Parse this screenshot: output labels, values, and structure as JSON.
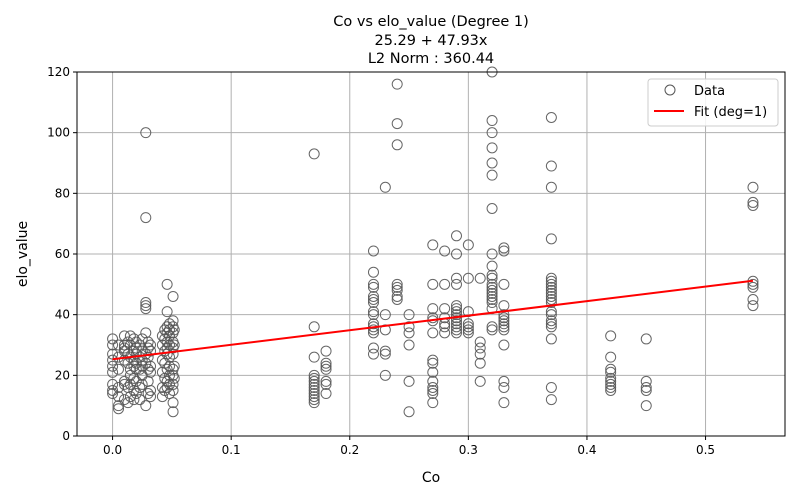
{
  "chart_data": {
    "type": "scatter",
    "title_lines": [
      "Co vs elo_value (Degree 1)",
      "25.29 + 47.93x",
      "L2 Norm : 360.44"
    ],
    "xlabel": "Co",
    "ylabel": "elo_value",
    "xlim": [
      -0.03,
      0.567
    ],
    "ylim": [
      0,
      120
    ],
    "xticks": [
      0.0,
      0.1,
      0.2,
      0.3,
      0.4,
      0.5
    ],
    "xtick_labels": [
      "0.0",
      "0.1",
      "0.2",
      "0.3",
      "0.4",
      "0.5"
    ],
    "yticks": [
      0,
      20,
      40,
      60,
      80,
      100,
      120
    ],
    "ytick_labels": [
      "0",
      "20",
      "40",
      "60",
      "80",
      "100",
      "120"
    ],
    "grid": true,
    "legend_position": "top-right",
    "legend": [
      "Data",
      "Fit (deg=1)"
    ],
    "fit": {
      "intercept": 25.29,
      "slope": 47.93,
      "x_range": [
        0.0,
        0.54
      ],
      "color": "#ff0000"
    },
    "marker_edge_color": "#555555",
    "series": [
      {
        "name": "Data",
        "points": [
          [
            0.0,
            32
          ],
          [
            0.0,
            30
          ],
          [
            0.0,
            27
          ],
          [
            0.0,
            25
          ],
          [
            0.0,
            23
          ],
          [
            0.0,
            21
          ],
          [
            0.0,
            17
          ],
          [
            0.0,
            15
          ],
          [
            0.0,
            14
          ],
          [
            0.005,
            30
          ],
          [
            0.005,
            26
          ],
          [
            0.005,
            22
          ],
          [
            0.005,
            16
          ],
          [
            0.005,
            13
          ],
          [
            0.005,
            10
          ],
          [
            0.005,
            9
          ],
          [
            0.01,
            33
          ],
          [
            0.01,
            30
          ],
          [
            0.01,
            29
          ],
          [
            0.01,
            28
          ],
          [
            0.01,
            25
          ],
          [
            0.01,
            18
          ],
          [
            0.01,
            17
          ],
          [
            0.01,
            12
          ],
          [
            0.013,
            31
          ],
          [
            0.013,
            27
          ],
          [
            0.013,
            24
          ],
          [
            0.013,
            16
          ],
          [
            0.013,
            11
          ],
          [
            0.015,
            33
          ],
          [
            0.015,
            30
          ],
          [
            0.015,
            26
          ],
          [
            0.015,
            22
          ],
          [
            0.015,
            20
          ],
          [
            0.015,
            17
          ],
          [
            0.015,
            13
          ],
          [
            0.018,
            32
          ],
          [
            0.018,
            28
          ],
          [
            0.018,
            25
          ],
          [
            0.018,
            23
          ],
          [
            0.018,
            19
          ],
          [
            0.018,
            15
          ],
          [
            0.018,
            12
          ],
          [
            0.02,
            31
          ],
          [
            0.02,
            29
          ],
          [
            0.02,
            27
          ],
          [
            0.02,
            24
          ],
          [
            0.02,
            22
          ],
          [
            0.02,
            18
          ],
          [
            0.02,
            14
          ],
          [
            0.023,
            30
          ],
          [
            0.023,
            26
          ],
          [
            0.023,
            22
          ],
          [
            0.023,
            16
          ],
          [
            0.023,
            12
          ],
          [
            0.025,
            32
          ],
          [
            0.025,
            28
          ],
          [
            0.025,
            25
          ],
          [
            0.025,
            23
          ],
          [
            0.025,
            20
          ],
          [
            0.025,
            17
          ],
          [
            0.028,
            100
          ],
          [
            0.028,
            72
          ],
          [
            0.028,
            44
          ],
          [
            0.028,
            43
          ],
          [
            0.028,
            42
          ],
          [
            0.028,
            34
          ],
          [
            0.028,
            27
          ],
          [
            0.028,
            24
          ],
          [
            0.028,
            10
          ],
          [
            0.03,
            31
          ],
          [
            0.03,
            29
          ],
          [
            0.03,
            26
          ],
          [
            0.03,
            22
          ],
          [
            0.03,
            18
          ],
          [
            0.03,
            14
          ],
          [
            0.032,
            30
          ],
          [
            0.032,
            28
          ],
          [
            0.032,
            23
          ],
          [
            0.032,
            21
          ],
          [
            0.032,
            15
          ],
          [
            0.032,
            13
          ],
          [
            0.042,
            33
          ],
          [
            0.042,
            30
          ],
          [
            0.042,
            25
          ],
          [
            0.042,
            21
          ],
          [
            0.042,
            16
          ],
          [
            0.042,
            13
          ],
          [
            0.044,
            35
          ],
          [
            0.044,
            32
          ],
          [
            0.044,
            28
          ],
          [
            0.044,
            24
          ],
          [
            0.044,
            19
          ],
          [
            0.044,
            15
          ],
          [
            0.046,
            50
          ],
          [
            0.046,
            41
          ],
          [
            0.046,
            36
          ],
          [
            0.046,
            34
          ],
          [
            0.046,
            31
          ],
          [
            0.046,
            29
          ],
          [
            0.046,
            27
          ],
          [
            0.046,
            22
          ],
          [
            0.046,
            18
          ],
          [
            0.046,
            16
          ],
          [
            0.048,
            37
          ],
          [
            0.048,
            35
          ],
          [
            0.048,
            33
          ],
          [
            0.048,
            30
          ],
          [
            0.048,
            26
          ],
          [
            0.048,
            23
          ],
          [
            0.048,
            20
          ],
          [
            0.048,
            17
          ],
          [
            0.048,
            14
          ],
          [
            0.051,
            46
          ],
          [
            0.051,
            38
          ],
          [
            0.051,
            36
          ],
          [
            0.051,
            34
          ],
          [
            0.051,
            31
          ],
          [
            0.051,
            29
          ],
          [
            0.051,
            27
          ],
          [
            0.051,
            22
          ],
          [
            0.051,
            20
          ],
          [
            0.051,
            17
          ],
          [
            0.051,
            15
          ],
          [
            0.051,
            11
          ],
          [
            0.051,
            8
          ],
          [
            0.052,
            35
          ],
          [
            0.052,
            30
          ],
          [
            0.052,
            23
          ],
          [
            0.052,
            19
          ],
          [
            0.17,
            93
          ],
          [
            0.17,
            36
          ],
          [
            0.17,
            26
          ],
          [
            0.17,
            20
          ],
          [
            0.17,
            19
          ],
          [
            0.17,
            18
          ],
          [
            0.17,
            17
          ],
          [
            0.17,
            16
          ],
          [
            0.17,
            15
          ],
          [
            0.17,
            14
          ],
          [
            0.17,
            13
          ],
          [
            0.17,
            12
          ],
          [
            0.17,
            11
          ],
          [
            0.18,
            28
          ],
          [
            0.18,
            24
          ],
          [
            0.18,
            23
          ],
          [
            0.18,
            22
          ],
          [
            0.18,
            18
          ],
          [
            0.18,
            17
          ],
          [
            0.18,
            14
          ],
          [
            0.22,
            61
          ],
          [
            0.22,
            54
          ],
          [
            0.22,
            50
          ],
          [
            0.22,
            49
          ],
          [
            0.22,
            46
          ],
          [
            0.22,
            45
          ],
          [
            0.22,
            44
          ],
          [
            0.22,
            41
          ],
          [
            0.22,
            40
          ],
          [
            0.22,
            37
          ],
          [
            0.22,
            36
          ],
          [
            0.22,
            35
          ],
          [
            0.22,
            34
          ],
          [
            0.22,
            29
          ],
          [
            0.22,
            27
          ],
          [
            0.23,
            82
          ],
          [
            0.23,
            40
          ],
          [
            0.23,
            35
          ],
          [
            0.23,
            28
          ],
          [
            0.23,
            27
          ],
          [
            0.23,
            20
          ],
          [
            0.24,
            116
          ],
          [
            0.24,
            103
          ],
          [
            0.24,
            96
          ],
          [
            0.24,
            50
          ],
          [
            0.24,
            49
          ],
          [
            0.24,
            48
          ],
          [
            0.24,
            46
          ],
          [
            0.24,
            45
          ],
          [
            0.25,
            40
          ],
          [
            0.25,
            36
          ],
          [
            0.25,
            34
          ],
          [
            0.25,
            30
          ],
          [
            0.25,
            18
          ],
          [
            0.25,
            8
          ],
          [
            0.27,
            63
          ],
          [
            0.27,
            50
          ],
          [
            0.27,
            42
          ],
          [
            0.27,
            39
          ],
          [
            0.27,
            38
          ],
          [
            0.27,
            34
          ],
          [
            0.27,
            25
          ],
          [
            0.27,
            24
          ],
          [
            0.27,
            21
          ],
          [
            0.27,
            18
          ],
          [
            0.27,
            16
          ],
          [
            0.27,
            15
          ],
          [
            0.27,
            14
          ],
          [
            0.27,
            11
          ],
          [
            0.28,
            61
          ],
          [
            0.28,
            50
          ],
          [
            0.28,
            42
          ],
          [
            0.28,
            39
          ],
          [
            0.28,
            37
          ],
          [
            0.28,
            36
          ],
          [
            0.28,
            34
          ],
          [
            0.29,
            66
          ],
          [
            0.29,
            60
          ],
          [
            0.29,
            52
          ],
          [
            0.29,
            50
          ],
          [
            0.29,
            43
          ],
          [
            0.29,
            42
          ],
          [
            0.29,
            41
          ],
          [
            0.29,
            40
          ],
          [
            0.29,
            39
          ],
          [
            0.29,
            38
          ],
          [
            0.29,
            37
          ],
          [
            0.29,
            36
          ],
          [
            0.29,
            35
          ],
          [
            0.29,
            34
          ],
          [
            0.3,
            63
          ],
          [
            0.3,
            52
          ],
          [
            0.3,
            41
          ],
          [
            0.3,
            37
          ],
          [
            0.3,
            36
          ],
          [
            0.3,
            35
          ],
          [
            0.3,
            34
          ],
          [
            0.31,
            52
          ],
          [
            0.31,
            31
          ],
          [
            0.31,
            29
          ],
          [
            0.31,
            27
          ],
          [
            0.31,
            24
          ],
          [
            0.31,
            18
          ],
          [
            0.32,
            120
          ],
          [
            0.32,
            104
          ],
          [
            0.32,
            100
          ],
          [
            0.32,
            95
          ],
          [
            0.32,
            90
          ],
          [
            0.32,
            86
          ],
          [
            0.32,
            75
          ],
          [
            0.32,
            60
          ],
          [
            0.32,
            56
          ],
          [
            0.32,
            53
          ],
          [
            0.32,
            52
          ],
          [
            0.32,
            50
          ],
          [
            0.32,
            49
          ],
          [
            0.32,
            48
          ],
          [
            0.32,
            47
          ],
          [
            0.32,
            46
          ],
          [
            0.32,
            45
          ],
          [
            0.32,
            44
          ],
          [
            0.32,
            42
          ],
          [
            0.32,
            36
          ],
          [
            0.32,
            35
          ],
          [
            0.33,
            62
          ],
          [
            0.33,
            61
          ],
          [
            0.33,
            50
          ],
          [
            0.33,
            43
          ],
          [
            0.33,
            40
          ],
          [
            0.33,
            39
          ],
          [
            0.33,
            38
          ],
          [
            0.33,
            37
          ],
          [
            0.33,
            36
          ],
          [
            0.33,
            35
          ],
          [
            0.33,
            30
          ],
          [
            0.33,
            18
          ],
          [
            0.33,
            16
          ],
          [
            0.33,
            11
          ],
          [
            0.37,
            105
          ],
          [
            0.37,
            89
          ],
          [
            0.37,
            82
          ],
          [
            0.37,
            65
          ],
          [
            0.37,
            52
          ],
          [
            0.37,
            51
          ],
          [
            0.37,
            50
          ],
          [
            0.37,
            49
          ],
          [
            0.37,
            48
          ],
          [
            0.37,
            47
          ],
          [
            0.37,
            46
          ],
          [
            0.37,
            45
          ],
          [
            0.37,
            44
          ],
          [
            0.37,
            41
          ],
          [
            0.37,
            40
          ],
          [
            0.37,
            38
          ],
          [
            0.37,
            37
          ],
          [
            0.37,
            36
          ],
          [
            0.37,
            32
          ],
          [
            0.37,
            16
          ],
          [
            0.37,
            12
          ],
          [
            0.42,
            33
          ],
          [
            0.42,
            26
          ],
          [
            0.42,
            22
          ],
          [
            0.42,
            21
          ],
          [
            0.42,
            19
          ],
          [
            0.42,
            18
          ],
          [
            0.42,
            17
          ],
          [
            0.42,
            16
          ],
          [
            0.42,
            15
          ],
          [
            0.45,
            32
          ],
          [
            0.45,
            18
          ],
          [
            0.45,
            16
          ],
          [
            0.45,
            15
          ],
          [
            0.45,
            10
          ],
          [
            0.54,
            82
          ],
          [
            0.54,
            77
          ],
          [
            0.54,
            76
          ],
          [
            0.54,
            51
          ],
          [
            0.54,
            50
          ],
          [
            0.54,
            49
          ],
          [
            0.54,
            45
          ],
          [
            0.54,
            43
          ]
        ]
      }
    ]
  }
}
